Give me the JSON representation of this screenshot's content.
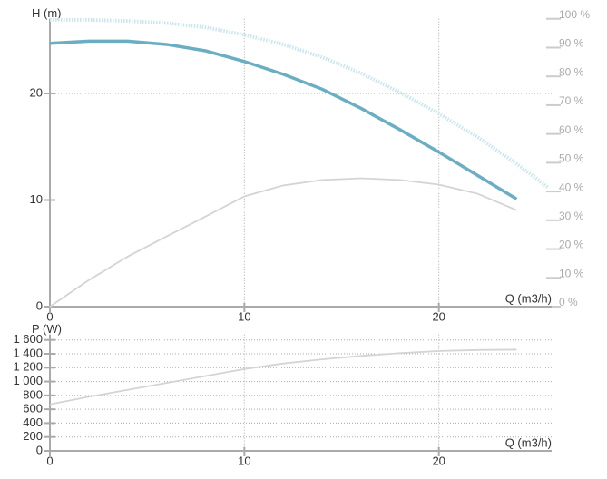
{
  "chart_data": [
    {
      "type": "line",
      "y_label": "H (m)",
      "x_label": "Q (m3/h)",
      "xlim": [
        0,
        25.8
      ],
      "xticks": [
        0,
        10,
        20
      ],
      "ylim": [
        0,
        27
      ],
      "yticks": [
        0,
        10,
        20
      ],
      "y2lim": [
        0,
        100
      ],
      "y2ticks": [
        {
          "value": 0,
          "label": "0 %"
        },
        {
          "value": 10,
          "label": "10 %"
        },
        {
          "value": 20,
          "label": "20 %"
        },
        {
          "value": 30,
          "label": "30 %"
        },
        {
          "value": 40,
          "label": "40 %"
        },
        {
          "value": 50,
          "label": "50 %"
        },
        {
          "value": 60,
          "label": "60 %"
        },
        {
          "value": 70,
          "label": "70 %"
        },
        {
          "value": 80,
          "label": "80 %"
        },
        {
          "value": 90,
          "label": "90 %"
        },
        {
          "value": 100,
          "label": "100 %"
        }
      ],
      "grid": true,
      "series": [
        {
          "color": "#c9e6f0",
          "style": "dotted",
          "x": [
            0,
            2,
            4,
            6,
            8,
            10,
            12,
            14,
            16,
            18,
            20,
            22,
            24,
            25.6
          ],
          "values": [
            26.9,
            26.9,
            26.8,
            26.6,
            26.2,
            25.5,
            24.6,
            23.4,
            21.9,
            20.1,
            18.1,
            15.9,
            13.4,
            11.2
          ]
        },
        {
          "color": "#6aaec4",
          "style": "thick",
          "x": [
            0,
            2,
            4,
            6,
            8,
            10,
            12,
            14,
            16,
            18,
            20,
            22,
            24
          ],
          "values": [
            24.7,
            24.9,
            24.9,
            24.6,
            24.0,
            23.0,
            21.8,
            20.4,
            18.6,
            16.6,
            14.5,
            12.3,
            10.1
          ]
        },
        {
          "color": "#d4d4d4",
          "style": "thin",
          "axis": "y2",
          "x": [
            0,
            2,
            4,
            6,
            8,
            10,
            12,
            14,
            16,
            18,
            20,
            22,
            24
          ],
          "values": [
            0,
            9.2,
            17.4,
            24.4,
            31.3,
            38.3,
            42.1,
            44.0,
            44.6,
            44.0,
            42.4,
            39.2,
            33.5
          ]
        }
      ]
    },
    {
      "type": "line",
      "y_label": "P (W)",
      "x_label": "Q (m3/h)",
      "xlim": [
        0,
        25.8
      ],
      "xticks": [
        0,
        10,
        20
      ],
      "ylim": [
        0,
        1680
      ],
      "yticks": [
        0,
        200,
        400,
        600,
        800,
        {
          "value": 1000,
          "label": "1 000"
        },
        {
          "value": 1200,
          "label": "1 200"
        },
        {
          "value": 1400,
          "label": "1 400"
        },
        {
          "value": 1600,
          "label": "1 600"
        }
      ],
      "grid": true,
      "series": [
        {
          "color": "#d4d4d4",
          "style": "thin",
          "x": [
            0,
            2,
            4,
            6,
            8,
            10,
            12,
            14,
            16,
            18,
            20,
            22,
            24
          ],
          "values": [
            670,
            780,
            880,
            980,
            1080,
            1180,
            1260,
            1320,
            1370,
            1410,
            1440,
            1455,
            1460
          ]
        }
      ]
    }
  ]
}
